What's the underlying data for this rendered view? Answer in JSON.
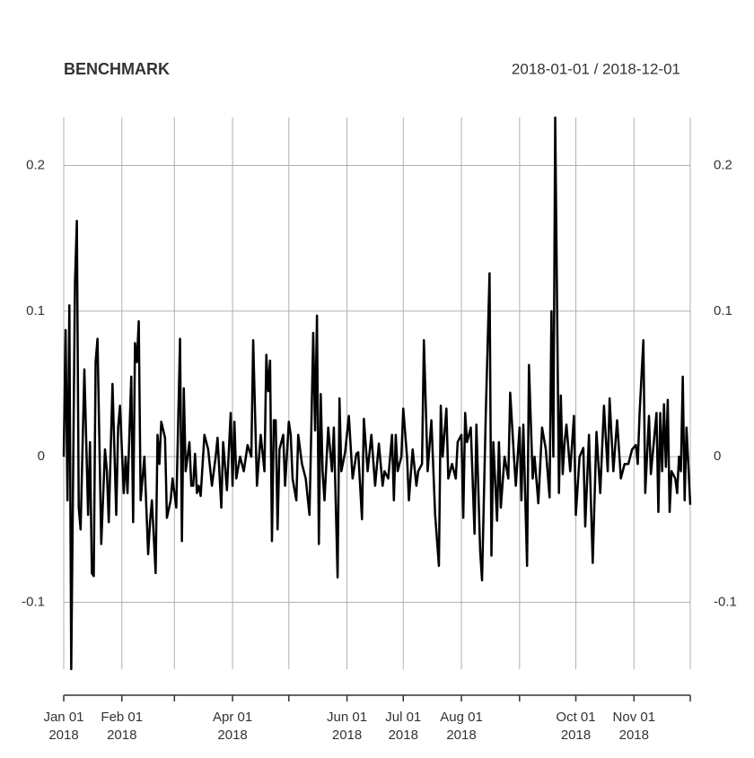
{
  "chart_data": {
    "type": "line",
    "title": "BENCHMARK",
    "subtitle": "2018-01-01 / 2018-12-01",
    "xlim": [
      "2018-01-01",
      "2018-12-01"
    ],
    "ylim": [
      -0.146,
      0.233
    ],
    "yticks": [
      -0.1,
      0.0,
      0.1,
      0.2
    ],
    "grid": true,
    "xticks": [
      {
        "value": "2018-01-01",
        "label": [
          "Jan 01",
          "2018"
        ]
      },
      {
        "value": "2018-02-01",
        "label": [
          "Feb 01",
          "2018"
        ]
      },
      {
        "value": "2018-03-01",
        "label": null
      },
      {
        "value": "2018-04-01",
        "label": [
          "Apr 01",
          "2018"
        ]
      },
      {
        "value": "2018-05-01",
        "label": null
      },
      {
        "value": "2018-06-01",
        "label": [
          "Jun 01",
          "2018"
        ]
      },
      {
        "value": "2018-07-01",
        "label": [
          "Jul 01",
          "2018"
        ]
      },
      {
        "value": "2018-08-01",
        "label": [
          "Aug 01",
          "2018"
        ]
      },
      {
        "value": "2018-09-01",
        "label": null
      },
      {
        "value": "2018-10-01",
        "label": [
          "Oct 01",
          "2018"
        ]
      },
      {
        "value": "2018-11-01",
        "label": [
          "Nov 01",
          "2018"
        ]
      },
      {
        "value": "2018-12-01",
        "label": null
      }
    ],
    "x": [
      "2018-01-01",
      "2018-01-02",
      "2018-01-03",
      "2018-01-04",
      "2018-01-05",
      "2018-01-07",
      "2018-01-08",
      "2018-01-09",
      "2018-01-10",
      "2018-01-12",
      "2018-01-14",
      "2018-01-15",
      "2018-01-16",
      "2018-01-17",
      "2018-01-18",
      "2018-01-19",
      "2018-01-21",
      "2018-01-23",
      "2018-01-24",
      "2018-01-25",
      "2018-01-27",
      "2018-01-29",
      "2018-01-30",
      "2018-01-31",
      "2018-02-02",
      "2018-02-03",
      "2018-02-04",
      "2018-02-06",
      "2018-02-07",
      "2018-02-08",
      "2018-02-09",
      "2018-02-10",
      "2018-02-11",
      "2018-02-13",
      "2018-02-15",
      "2018-02-16",
      "2018-02-17",
      "2018-02-19",
      "2018-02-20",
      "2018-02-21",
      "2018-02-22",
      "2018-02-24",
      "2018-02-25",
      "2018-02-27",
      "2018-02-28",
      "2018-03-02",
      "2018-03-04",
      "2018-03-05",
      "2018-03-06",
      "2018-03-07",
      "2018-03-09",
      "2018-03-10",
      "2018-03-11",
      "2018-03-12",
      "2018-03-13",
      "2018-03-14",
      "2018-03-15",
      "2018-03-17",
      "2018-03-19",
      "2018-03-21",
      "2018-03-23",
      "2018-03-24",
      "2018-03-26",
      "2018-03-27",
      "2018-03-29",
      "2018-03-31",
      "2018-04-01",
      "2018-04-02",
      "2018-04-03",
      "2018-04-05",
      "2018-04-07",
      "2018-04-09",
      "2018-04-11",
      "2018-04-12",
      "2018-04-14",
      "2018-04-16",
      "2018-04-18",
      "2018-04-19",
      "2018-04-20",
      "2018-04-21",
      "2018-04-22",
      "2018-04-23",
      "2018-04-24",
      "2018-04-25",
      "2018-04-26",
      "2018-04-28",
      "2018-04-29",
      "2018-05-01",
      "2018-05-02",
      "2018-05-03",
      "2018-05-05",
      "2018-05-06",
      "2018-05-08",
      "2018-05-10",
      "2018-05-12",
      "2018-05-13",
      "2018-05-14",
      "2018-05-15",
      "2018-05-16",
      "2018-05-17",
      "2018-05-18",
      "2018-05-19",
      "2018-05-20",
      "2018-05-22",
      "2018-05-24",
      "2018-05-25",
      "2018-05-27",
      "2018-05-28",
      "2018-05-29",
      "2018-05-31",
      "2018-06-02",
      "2018-06-04",
      "2018-06-06",
      "2018-06-07",
      "2018-06-09",
      "2018-06-10",
      "2018-06-12",
      "2018-06-14",
      "2018-06-16",
      "2018-06-18",
      "2018-06-20",
      "2018-06-21",
      "2018-06-23",
      "2018-06-25",
      "2018-06-26",
      "2018-06-27",
      "2018-06-28",
      "2018-06-30",
      "2018-07-01",
      "2018-07-03",
      "2018-07-04",
      "2018-07-06",
      "2018-07-08",
      "2018-07-09",
      "2018-07-11",
      "2018-07-12",
      "2018-07-14",
      "2018-07-16",
      "2018-07-18",
      "2018-07-20",
      "2018-07-21",
      "2018-07-22",
      "2018-07-24",
      "2018-07-25",
      "2018-07-27",
      "2018-07-29",
      "2018-07-30",
      "2018-08-01",
      "2018-08-02",
      "2018-08-03",
      "2018-08-04",
      "2018-08-06",
      "2018-08-08",
      "2018-08-09",
      "2018-08-11",
      "2018-08-12",
      "2018-08-14",
      "2018-08-16",
      "2018-08-17",
      "2018-08-18",
      "2018-08-20",
      "2018-08-21",
      "2018-08-22",
      "2018-08-24",
      "2018-08-26",
      "2018-08-27",
      "2018-08-29",
      "2018-08-30",
      "2018-09-01",
      "2018-09-02",
      "2018-09-03",
      "2018-09-05",
      "2018-09-06",
      "2018-09-08",
      "2018-09-09",
      "2018-09-11",
      "2018-09-13",
      "2018-09-15",
      "2018-09-17",
      "2018-09-18",
      "2018-09-19",
      "2018-09-20",
      "2018-09-22",
      "2018-09-23",
      "2018-09-24",
      "2018-09-25",
      "2018-09-26",
      "2018-09-28",
      "2018-09-30",
      "2018-10-01",
      "2018-10-03",
      "2018-10-05",
      "2018-10-06",
      "2018-10-08",
      "2018-10-10",
      "2018-10-12",
      "2018-10-14",
      "2018-10-16",
      "2018-10-18",
      "2018-10-19",
      "2018-10-21",
      "2018-10-23",
      "2018-10-25",
      "2018-10-27",
      "2018-10-29",
      "2018-10-31",
      "2018-11-02",
      "2018-11-03",
      "2018-11-04",
      "2018-11-06",
      "2018-11-07",
      "2018-11-09",
      "2018-11-10",
      "2018-11-11",
      "2018-11-13",
      "2018-11-14",
      "2018-11-15",
      "2018-11-16",
      "2018-11-17",
      "2018-11-18",
      "2018-11-19",
      "2018-11-20",
      "2018-11-21",
      "2018-11-23",
      "2018-11-24",
      "2018-11-25",
      "2018-11-26",
      "2018-11-27",
      "2018-11-28",
      "2018-11-29",
      "2018-12-01"
    ],
    "series": [
      {
        "name": "BENCHMARK",
        "color": "#000000",
        "values": [
          0.0,
          0.087,
          -0.03,
          0.104,
          -0.146,
          0.12,
          0.162,
          -0.035,
          -0.05,
          0.06,
          -0.04,
          0.01,
          -0.08,
          -0.082,
          0.065,
          0.081,
          -0.06,
          0.005,
          -0.01,
          -0.045,
          0.05,
          -0.04,
          0.02,
          0.035,
          -0.025,
          0.0,
          -0.025,
          0.055,
          -0.045,
          0.078,
          0.065,
          0.093,
          -0.03,
          0.0,
          -0.067,
          -0.045,
          -0.03,
          -0.08,
          0.015,
          -0.005,
          0.024,
          0.013,
          -0.042,
          -0.03,
          -0.015,
          -0.035,
          0.081,
          -0.058,
          0.047,
          -0.01,
          0.01,
          -0.02,
          -0.02,
          0.002,
          -0.025,
          -0.02,
          -0.027,
          0.015,
          0.005,
          -0.02,
          0.0,
          0.013,
          -0.035,
          0.01,
          -0.023,
          0.03,
          -0.02,
          0.024,
          -0.015,
          0.0,
          -0.01,
          0.008,
          0.0,
          0.08,
          -0.02,
          0.015,
          -0.01,
          0.07,
          0.045,
          0.066,
          -0.058,
          0.025,
          0.025,
          -0.05,
          0.005,
          0.015,
          -0.02,
          0.024,
          0.015,
          -0.015,
          -0.03,
          0.015,
          -0.005,
          -0.015,
          -0.04,
          0.02,
          0.085,
          0.018,
          0.097,
          -0.06,
          0.043,
          -0.01,
          -0.03,
          0.02,
          -0.01,
          0.02,
          -0.083,
          0.04,
          -0.01,
          0.003,
          0.028,
          -0.015,
          0.002,
          0.003,
          -0.043,
          0.026,
          -0.01,
          0.015,
          -0.02,
          0.009,
          -0.02,
          -0.01,
          -0.015,
          0.015,
          -0.03,
          0.015,
          -0.01,
          0.0,
          0.033,
          0.0,
          -0.03,
          0.005,
          -0.02,
          -0.01,
          -0.005,
          0.08,
          -0.01,
          0.025,
          -0.04,
          -0.075,
          0.035,
          0.0,
          0.033,
          -0.015,
          -0.005,
          -0.015,
          0.01,
          0.015,
          -0.042,
          0.03,
          0.01,
          0.02,
          -0.053,
          0.022,
          -0.065,
          -0.085,
          0.03,
          0.126,
          -0.068,
          0.01,
          -0.044,
          0.01,
          -0.035,
          0.0,
          -0.015,
          0.044,
          0.0,
          -0.02,
          0.02,
          -0.03,
          0.022,
          -0.075,
          0.063,
          -0.015,
          0.0,
          -0.032,
          0.02,
          0.005,
          -0.028,
          0.1,
          0.0,
          0.233,
          -0.025,
          0.042,
          -0.012,
          0.01,
          0.022,
          -0.01,
          0.028,
          -0.04,
          0.0,
          0.006,
          -0.048,
          0.015,
          -0.073,
          0.017,
          -0.025,
          0.035,
          -0.01,
          0.04,
          -0.01,
          0.025,
          -0.015,
          -0.005,
          -0.005,
          0.005,
          0.008,
          -0.005,
          0.03,
          0.08,
          -0.025,
          0.028,
          -0.012,
          0.002,
          0.03,
          -0.038,
          0.03,
          -0.01,
          0.036,
          -0.007,
          0.039,
          -0.038,
          -0.01,
          -0.015,
          -0.025,
          0.0,
          -0.01,
          0.055,
          -0.03,
          0.02,
          -0.033
        ]
      }
    ]
  }
}
